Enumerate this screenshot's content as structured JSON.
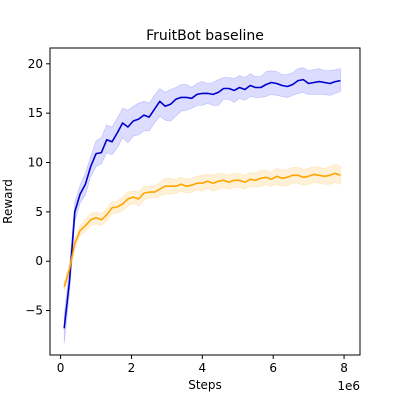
{
  "chart_data": {
    "type": "line",
    "title": "FruitBot baseline",
    "xlabel": "Steps",
    "ylabel": "Reward",
    "x_offset_label": "1e6",
    "xlim": [
      -0.3,
      8.45
    ],
    "ylim": [
      -9.5,
      21.6
    ],
    "xticks": [
      0,
      2,
      4,
      6,
      8
    ],
    "yticks": [
      -5,
      0,
      5,
      10,
      15,
      20
    ],
    "grid": false,
    "legend": "none",
    "series": [
      {
        "color": "#0000cc",
        "band_color": "#8a8aff",
        "x": [
          0.1,
          0.25,
          0.4,
          0.55,
          0.7,
          0.85,
          1.0,
          1.15,
          1.3,
          1.45,
          1.6,
          1.75,
          1.9,
          2.05,
          2.2,
          2.35,
          2.5,
          2.65,
          2.8,
          2.95,
          3.1,
          3.25,
          3.4,
          3.55,
          3.7,
          3.85,
          4.0,
          4.15,
          4.3,
          4.45,
          4.6,
          4.75,
          4.9,
          5.05,
          5.2,
          5.35,
          5.5,
          5.65,
          5.8,
          5.95,
          6.1,
          6.25,
          6.4,
          6.55,
          6.7,
          6.85,
          7.0,
          7.15,
          7.3,
          7.45,
          7.6,
          7.75,
          7.9
        ],
        "mean": [
          -6.8,
          -2.0,
          5.0,
          6.8,
          7.8,
          9.6,
          10.9,
          11.0,
          12.3,
          12.1,
          13.0,
          14.0,
          13.6,
          14.2,
          14.4,
          14.8,
          14.6,
          15.4,
          16.2,
          15.7,
          15.9,
          16.4,
          16.6,
          16.6,
          16.5,
          16.9,
          17.0,
          17.0,
          16.9,
          17.1,
          17.5,
          17.5,
          17.3,
          17.6,
          17.4,
          17.8,
          17.6,
          17.6,
          17.9,
          18.1,
          18.0,
          17.8,
          17.7,
          17.9,
          18.3,
          18.4,
          18.0,
          18.1,
          18.2,
          18.1,
          18.0,
          18.2,
          18.3
        ],
        "lower": [
          -8.3,
          -3.2,
          4.0,
          5.9,
          6.7,
          8.6,
          9.6,
          9.9,
          11.0,
          10.8,
          11.5,
          12.5,
          12.0,
          12.7,
          12.8,
          13.2,
          13.2,
          14.0,
          14.7,
          14.3,
          14.2,
          14.7,
          15.2,
          15.3,
          15.5,
          15.8,
          15.8,
          16.0,
          15.8,
          15.8,
          16.4,
          16.4,
          16.1,
          16.5,
          16.3,
          16.7,
          16.6,
          16.6,
          16.7,
          16.9,
          16.8,
          16.7,
          16.6,
          16.8,
          17.0,
          17.1,
          16.9,
          16.9,
          16.9,
          16.9,
          16.8,
          17.0,
          17.2
        ],
        "upper": [
          -5.4,
          -0.8,
          6.0,
          7.7,
          8.9,
          10.6,
          12.2,
          12.5,
          13.8,
          13.6,
          14.5,
          15.5,
          15.3,
          15.7,
          16.0,
          16.2,
          16.0,
          16.8,
          17.5,
          17.1,
          17.4,
          17.6,
          17.9,
          17.9,
          17.6,
          18.0,
          18.2,
          18.0,
          18.1,
          18.4,
          18.6,
          18.6,
          18.5,
          18.8,
          18.6,
          19.0,
          18.7,
          18.7,
          19.2,
          19.3,
          19.2,
          18.9,
          18.9,
          19.1,
          19.5,
          19.6,
          19.3,
          19.4,
          19.5,
          19.3,
          19.3,
          19.4,
          19.5
        ]
      },
      {
        "color": "#ffa500",
        "band_color": "#ffd27f",
        "x": [
          0.1,
          0.25,
          0.4,
          0.55,
          0.7,
          0.85,
          1.0,
          1.15,
          1.3,
          1.45,
          1.6,
          1.75,
          1.9,
          2.05,
          2.2,
          2.35,
          2.5,
          2.65,
          2.8,
          2.95,
          3.1,
          3.25,
          3.4,
          3.55,
          3.7,
          3.85,
          4.0,
          4.15,
          4.3,
          4.45,
          4.6,
          4.75,
          4.9,
          5.05,
          5.2,
          5.35,
          5.5,
          5.65,
          5.8,
          5.95,
          6.1,
          6.25,
          6.4,
          6.55,
          6.7,
          6.85,
          7.0,
          7.15,
          7.3,
          7.45,
          7.6,
          7.75,
          7.9
        ],
        "mean": [
          -2.6,
          -0.8,
          1.8,
          3.1,
          3.6,
          4.2,
          4.4,
          4.2,
          4.7,
          5.4,
          5.5,
          5.8,
          6.3,
          6.5,
          6.3,
          6.9,
          7.0,
          7.0,
          7.3,
          7.6,
          7.6,
          7.6,
          7.8,
          7.6,
          7.7,
          7.9,
          7.9,
          8.1,
          7.9,
          8.1,
          8.2,
          8.0,
          8.2,
          8.2,
          8.0,
          8.3,
          8.2,
          8.4,
          8.5,
          8.3,
          8.6,
          8.4,
          8.5,
          8.7,
          8.7,
          8.5,
          8.6,
          8.8,
          8.7,
          8.6,
          8.7,
          8.9,
          8.7
        ],
        "lower": [
          -3.0,
          -1.3,
          1.3,
          2.6,
          3.0,
          3.6,
          3.8,
          3.6,
          4.1,
          4.8,
          4.9,
          5.1,
          5.6,
          5.9,
          5.6,
          6.2,
          6.4,
          6.4,
          6.6,
          6.8,
          6.8,
          6.9,
          7.1,
          6.9,
          7.0,
          7.2,
          7.1,
          7.4,
          7.1,
          7.3,
          7.5,
          7.3,
          7.5,
          7.5,
          7.3,
          7.6,
          7.5,
          7.6,
          7.8,
          7.6,
          7.8,
          7.6,
          7.7,
          7.9,
          7.9,
          7.7,
          7.8,
          8.0,
          7.9,
          7.8,
          7.8,
          8.0,
          7.8
        ],
        "upper": [
          -2.2,
          -0.3,
          2.3,
          3.6,
          4.2,
          4.8,
          5.0,
          4.8,
          5.3,
          6.0,
          6.1,
          6.5,
          7.0,
          7.1,
          7.0,
          7.6,
          7.6,
          7.6,
          8.0,
          8.4,
          8.4,
          8.3,
          8.5,
          8.3,
          8.4,
          8.6,
          8.7,
          8.8,
          8.7,
          8.9,
          8.9,
          8.7,
          8.9,
          8.9,
          8.7,
          9.0,
          8.9,
          9.2,
          9.2,
          9.0,
          9.4,
          9.2,
          9.3,
          9.5,
          9.5,
          9.3,
          9.4,
          9.6,
          9.5,
          9.4,
          9.6,
          9.8,
          9.6
        ]
      }
    ]
  }
}
